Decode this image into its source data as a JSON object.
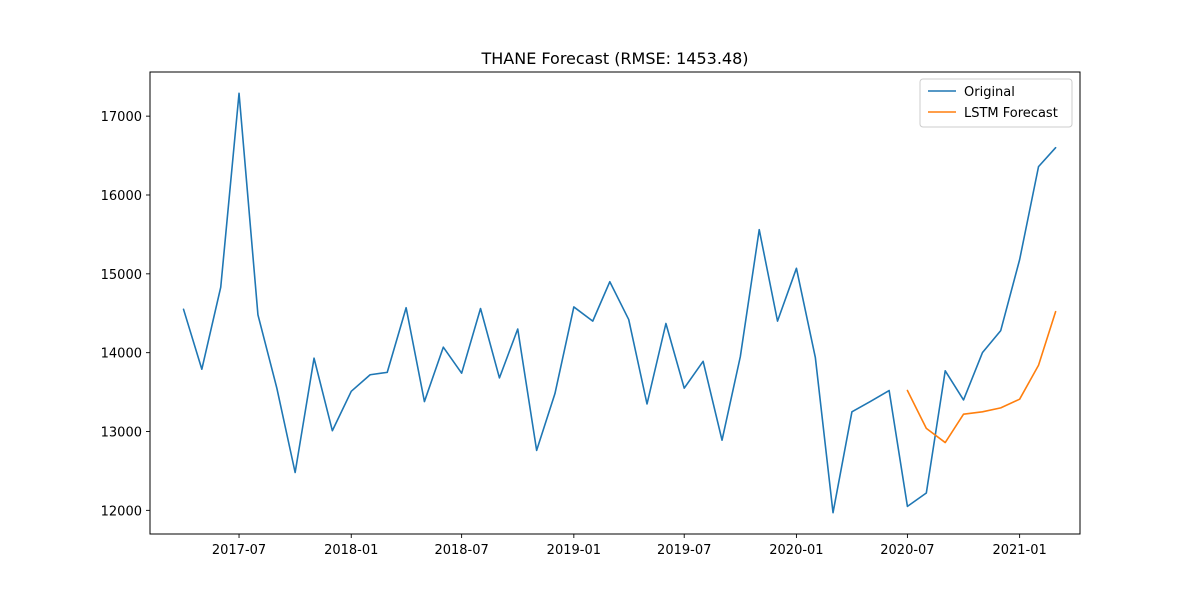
{
  "chart_data": {
    "type": "line",
    "title": "THANE Forecast (RMSE: 1453.48)",
    "xlabel": "",
    "ylabel": "",
    "x_axis": {
      "type": "date",
      "range": [
        "2017-02-05",
        "2021-04-10"
      ],
      "ticks": [
        "2017-07-01",
        "2018-01-01",
        "2018-07-01",
        "2019-01-01",
        "2019-07-01",
        "2020-01-01",
        "2020-07-01",
        "2021-01-01"
      ],
      "tick_labels": [
        "2017-07",
        "2018-01",
        "2018-07",
        "2019-01",
        "2019-07",
        "2020-01",
        "2020-07",
        "2021-01"
      ]
    },
    "y_axis": {
      "range": [
        11700,
        17560
      ],
      "ticks": [
        12000,
        13000,
        14000,
        15000,
        16000,
        17000
      ],
      "tick_labels": [
        "12000",
        "13000",
        "14000",
        "15000",
        "16000",
        "17000"
      ]
    },
    "grid": false,
    "legend": {
      "position": "top-right"
    },
    "series": [
      {
        "name": "Original",
        "color": "#1f77b4",
        "points": [
          [
            "2017-04-01",
            14550
          ],
          [
            "2017-05-01",
            13790
          ],
          [
            "2017-06-01",
            14830
          ],
          [
            "2017-07-01",
            17290
          ],
          [
            "2017-08-01",
            14480
          ],
          [
            "2017-09-01",
            13550
          ],
          [
            "2017-10-01",
            12480
          ],
          [
            "2017-11-01",
            13930
          ],
          [
            "2017-12-01",
            13010
          ],
          [
            "2018-01-01",
            13510
          ],
          [
            "2018-02-01",
            13720
          ],
          [
            "2018-03-01",
            13750
          ],
          [
            "2018-04-01",
            14570
          ],
          [
            "2018-05-01",
            13380
          ],
          [
            "2018-06-01",
            14070
          ],
          [
            "2018-07-01",
            13740
          ],
          [
            "2018-08-01",
            14560
          ],
          [
            "2018-09-01",
            13680
          ],
          [
            "2018-10-01",
            14300
          ],
          [
            "2018-11-01",
            12760
          ],
          [
            "2018-12-01",
            13480
          ],
          [
            "2019-01-01",
            14580
          ],
          [
            "2019-02-01",
            14400
          ],
          [
            "2019-03-01",
            14900
          ],
          [
            "2019-04-01",
            14420
          ],
          [
            "2019-05-01",
            13350
          ],
          [
            "2019-06-01",
            14370
          ],
          [
            "2019-07-01",
            13550
          ],
          [
            "2019-08-01",
            13890
          ],
          [
            "2019-09-01",
            12890
          ],
          [
            "2019-10-01",
            13950
          ],
          [
            "2019-11-01",
            15560
          ],
          [
            "2019-12-01",
            14400
          ],
          [
            "2020-01-01",
            15070
          ],
          [
            "2020-02-01",
            13940
          ],
          [
            "2020-03-01",
            11970
          ],
          [
            "2020-04-01",
            13250
          ],
          [
            "2020-05-01",
            13380
          ],
          [
            "2020-06-01",
            13520
          ],
          [
            "2020-07-01",
            12050
          ],
          [
            "2020-08-01",
            12220
          ],
          [
            "2020-09-01",
            13770
          ],
          [
            "2020-10-01",
            13400
          ],
          [
            "2020-11-01",
            14000
          ],
          [
            "2020-12-01",
            14280
          ],
          [
            "2021-01-01",
            15180
          ],
          [
            "2021-02-01",
            16360
          ],
          [
            "2021-03-01",
            16600
          ]
        ]
      },
      {
        "name": "LSTM Forecast",
        "color": "#ff7f0e",
        "points": [
          [
            "2020-07-01",
            13520
          ],
          [
            "2020-08-01",
            13040
          ],
          [
            "2020-09-01",
            12860
          ],
          [
            "2020-10-01",
            13220
          ],
          [
            "2020-11-01",
            13250
          ],
          [
            "2020-12-01",
            13300
          ],
          [
            "2021-01-01",
            13410
          ],
          [
            "2021-02-01",
            13840
          ],
          [
            "2021-03-01",
            14520
          ]
        ]
      }
    ]
  }
}
